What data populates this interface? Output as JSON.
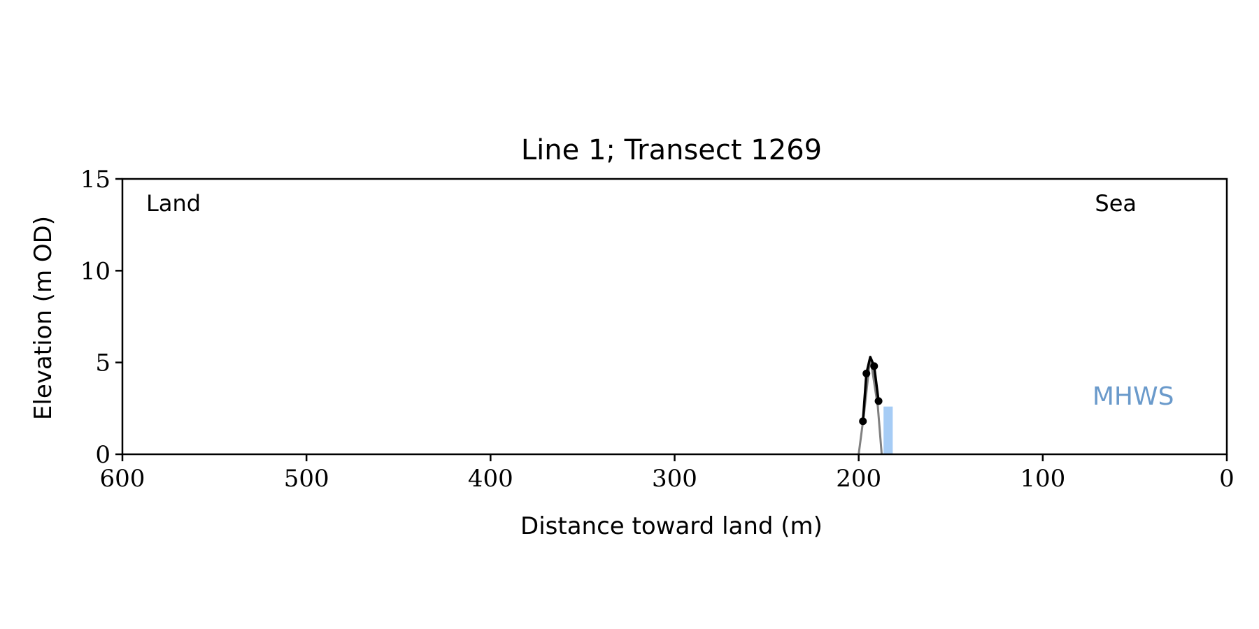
{
  "chart_data": {
    "type": "line",
    "title": "Line 1; Transect 1269",
    "xlabel": "Distance toward land (m)",
    "ylabel": "Elevation (m OD)",
    "xlim": [
      600,
      0
    ],
    "ylim": [
      0,
      15
    ],
    "x_ticks": [
      600,
      500,
      400,
      300,
      200,
      100,
      0
    ],
    "y_ticks": [
      0,
      5,
      10,
      15
    ],
    "grid": false,
    "annotations": {
      "land": "Land",
      "sea": "Sea",
      "mhws": "MHWS"
    },
    "series": [
      {
        "style": "black line with markers",
        "x": [
          197.7,
          195.8,
          193.7,
          191.6,
          189.2
        ],
        "y": [
          1.8,
          4.4,
          5.3,
          4.8,
          2.9
        ],
        "markers": [
          true,
          true,
          false,
          true,
          true
        ]
      },
      {
        "style": "grey profile",
        "x": [
          200,
          197,
          193.7,
          189.6,
          187.5
        ],
        "y": [
          0,
          2.3,
          5.3,
          2.6,
          0
        ]
      }
    ],
    "mhws_bar": {
      "x_start": 186.5,
      "x_end": 181.5,
      "y": 2.6
    },
    "colors": {
      "profile": "#000000",
      "profile_fill": "#cfcfcf",
      "grey_line": "#808080",
      "mhws_bar": "#a6ccf5",
      "mhws_text": "#6a9acb"
    }
  }
}
